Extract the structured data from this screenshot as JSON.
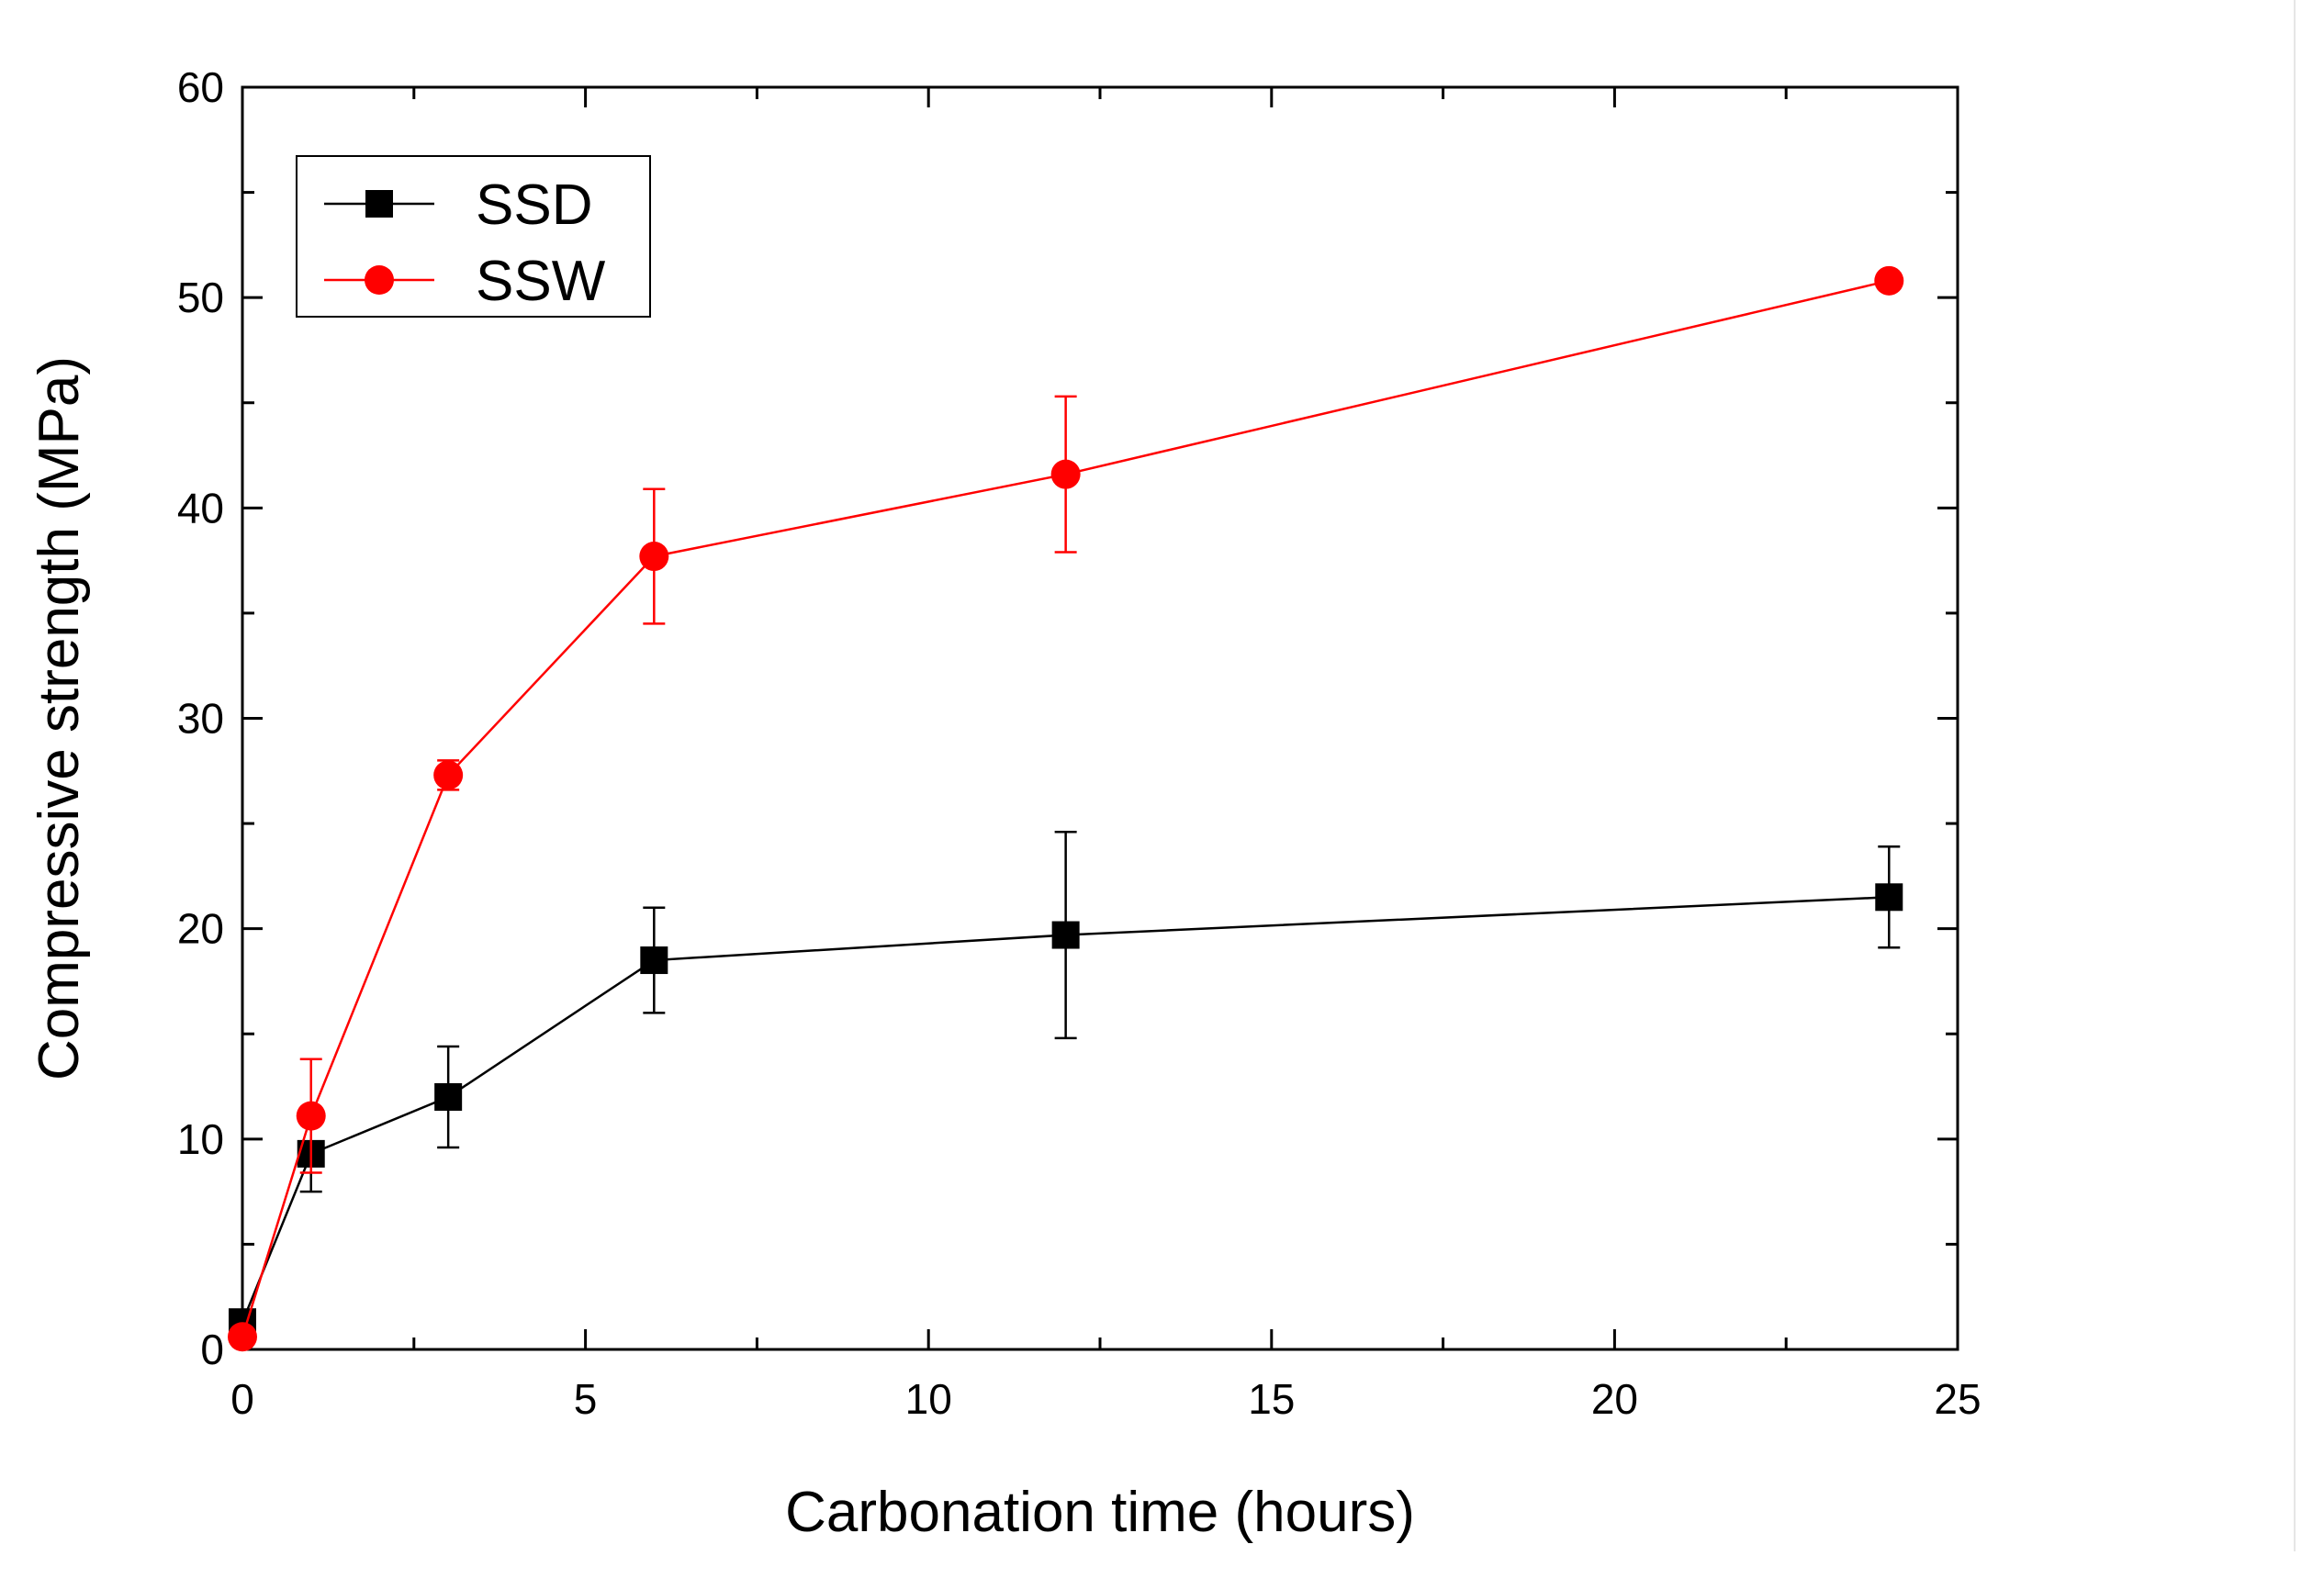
{
  "colors": {
    "ssd": "#000000",
    "ssw": "#ff0000",
    "axis": "#000000"
  },
  "chart_data": {
    "type": "line",
    "title": "",
    "xlabel": "Carbonation time (hours)",
    "ylabel": "Compressive strength (MPa)",
    "xlim": [
      0,
      25
    ],
    "ylim": [
      0,
      60
    ],
    "xticks": [
      0,
      5,
      10,
      15,
      20,
      25
    ],
    "yticks": [
      0,
      10,
      20,
      30,
      40,
      50,
      60
    ],
    "grid": false,
    "legend": "top-left",
    "x": [
      0,
      1,
      3,
      6,
      12,
      24
    ],
    "series": [
      {
        "name": "SSD",
        "marker": "square",
        "values": [
          1.3,
          9.3,
          12.0,
          18.5,
          19.7,
          21.5
        ],
        "error": [
          0.3,
          1.8,
          2.4,
          2.5,
          4.9,
          2.4
        ]
      },
      {
        "name": "SSW",
        "marker": "circle",
        "values": [
          0.6,
          11.1,
          27.3,
          37.7,
          41.6,
          50.8
        ],
        "error": [
          0.2,
          2.7,
          0.7,
          3.2,
          3.7,
          0.0
        ]
      }
    ]
  }
}
